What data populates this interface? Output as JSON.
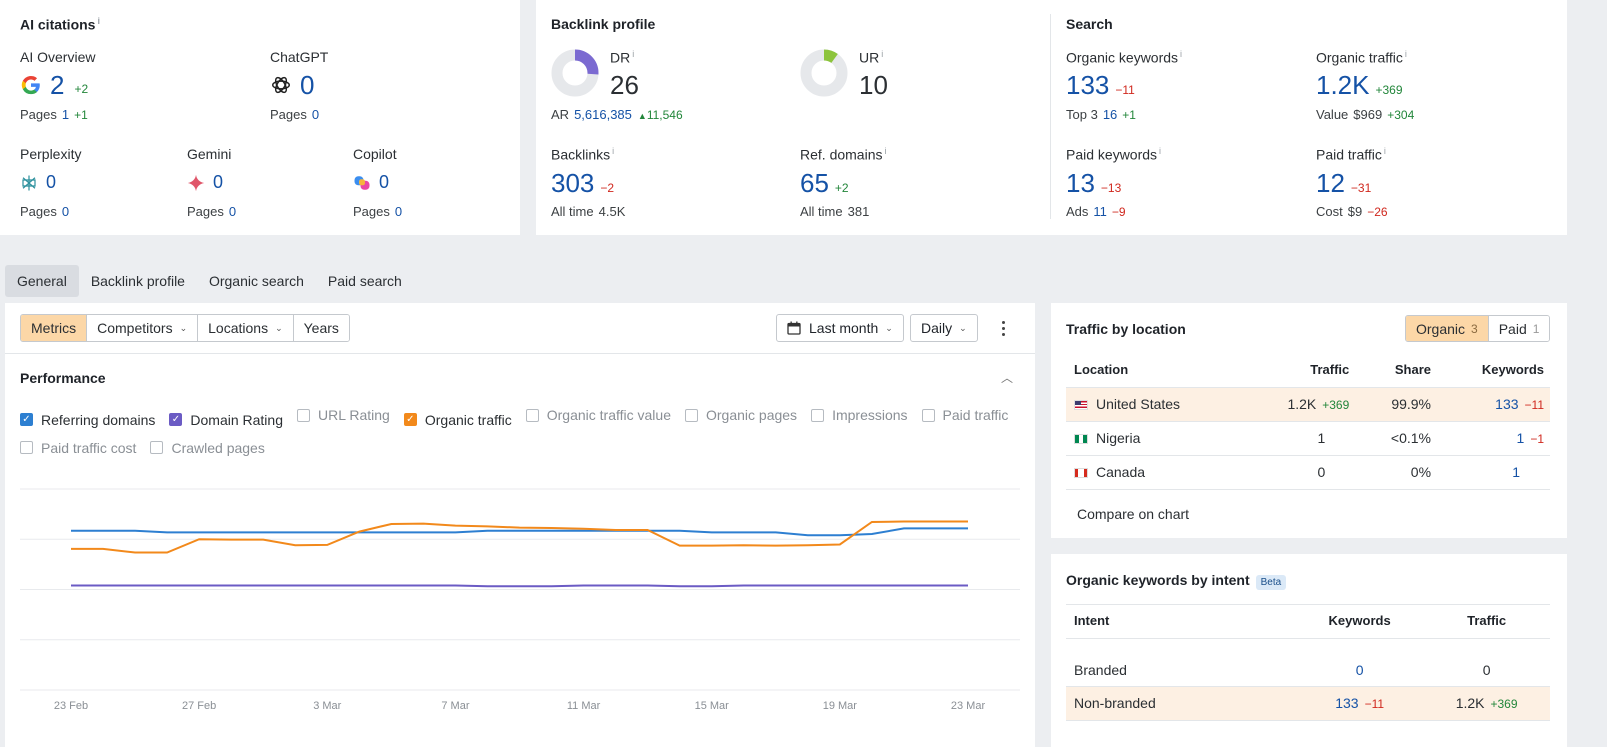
{
  "ai": {
    "title": "AI citations",
    "overview": {
      "label": "AI Overview",
      "value": "2",
      "delta": "+2",
      "pages_label": "Pages",
      "pages": "1",
      "pages_delta": "+1"
    },
    "chatgpt": {
      "label": "ChatGPT",
      "value": "0",
      "pages_label": "Pages",
      "pages": "0"
    },
    "perplexity": {
      "label": "Perplexity",
      "value": "0",
      "pages_label": "Pages",
      "pages": "0"
    },
    "gemini": {
      "label": "Gemini",
      "value": "0",
      "pages_label": "Pages",
      "pages": "0"
    },
    "copilot": {
      "label": "Copilot",
      "value": "0",
      "pages_label": "Pages",
      "pages": "0"
    }
  },
  "backlink": {
    "title": "Backlink profile",
    "dr": {
      "label": "DR",
      "value": "26",
      "fraction": 0.26
    },
    "ur": {
      "label": "UR",
      "value": "10",
      "fraction": 0.1
    },
    "ar": {
      "label": "AR",
      "value": "5,616,385",
      "delta": "11,546"
    },
    "backlinks": {
      "label": "Backlinks",
      "value": "303",
      "delta": "−2",
      "sub_label": "All time",
      "sub_value": "4.5K"
    },
    "refdomains": {
      "label": "Ref. domains",
      "value": "65",
      "delta": "+2",
      "sub_label": "All time",
      "sub_value": "381"
    }
  },
  "search": {
    "title": "Search",
    "org_kw": {
      "label": "Organic keywords",
      "value": "133",
      "delta": "−11",
      "sub_label": "Top 3",
      "sub_value": "16",
      "sub_delta": "+1"
    },
    "org_traffic": {
      "label": "Organic traffic",
      "value": "1.2K",
      "delta": "+369",
      "sub_label": "Value",
      "sub_value": "$969",
      "sub_delta": "+304"
    },
    "paid_kw": {
      "label": "Paid keywords",
      "value": "13",
      "delta": "−13",
      "sub_label": "Ads",
      "sub_value": "11",
      "sub_delta": "−9"
    },
    "paid_traffic": {
      "label": "Paid traffic",
      "value": "12",
      "delta": "−31",
      "sub_label": "Cost",
      "sub_value": "$9",
      "sub_delta": "−26"
    }
  },
  "tabs": [
    "General",
    "Backlink profile",
    "Organic search",
    "Paid search"
  ],
  "toolbar": {
    "segments": [
      "Metrics",
      "Competitors",
      "Locations",
      "Years"
    ],
    "period": "Last month",
    "granularity": "Daily"
  },
  "performance": {
    "title": "Performance",
    "checkboxes": [
      {
        "label": "Referring domains",
        "checked": true,
        "color": "#2d7fd1"
      },
      {
        "label": "Domain Rating",
        "checked": true,
        "color": "#6b5bc4"
      },
      {
        "label": "URL Rating",
        "checked": false
      },
      {
        "label": "Organic traffic",
        "checked": true,
        "color": "#f2891b"
      },
      {
        "label": "Organic traffic value",
        "checked": false
      },
      {
        "label": "Organic pages",
        "checked": false
      },
      {
        "label": "Impressions",
        "checked": false
      },
      {
        "label": "Paid traffic",
        "checked": false
      },
      {
        "label": "Paid traffic cost",
        "checked": false
      },
      {
        "label": "Crawled pages",
        "checked": false
      }
    ]
  },
  "chart_data": {
    "type": "line",
    "x": [
      "23 Feb",
      "24 Feb",
      "25 Feb",
      "26 Feb",
      "27 Feb",
      "28 Feb",
      "1 Mar",
      "2 Mar",
      "3 Mar",
      "4 Mar",
      "5 Mar",
      "6 Mar",
      "7 Mar",
      "8 Mar",
      "9 Mar",
      "10 Mar",
      "11 Mar",
      "12 Mar",
      "13 Mar",
      "14 Mar",
      "15 Mar",
      "16 Mar",
      "17 Mar",
      "18 Mar",
      "19 Mar",
      "20 Mar",
      "21 Mar",
      "22 Mar",
      "23 Mar"
    ],
    "xticks": [
      "23 Feb",
      "27 Feb",
      "3 Mar",
      "7 Mar",
      "11 Mar",
      "15 Mar",
      "19 Mar",
      "23 Mar"
    ],
    "ylim": [
      0,
      100
    ],
    "grid": true,
    "series": [
      {
        "name": "Referring domains",
        "color": "#2d7fd1",
        "values": [
          79.2,
          79.2,
          79.2,
          78.4,
          78.4,
          78.4,
          78.4,
          78.4,
          78.4,
          78.4,
          78.4,
          78.4,
          78.4,
          79.2,
          79.2,
          79.2,
          79.2,
          79.2,
          79.2,
          79.2,
          78.4,
          78.4,
          78.4,
          77.0,
          77.0,
          77.6,
          80.4,
          80.4,
          80.4
        ]
      },
      {
        "name": "Organic traffic",
        "color": "#f2891b",
        "values": [
          70.2,
          70.2,
          68.4,
          68.4,
          75.0,
          74.8,
          74.8,
          72.0,
          72.2,
          78.8,
          82.6,
          82.8,
          81.8,
          81.4,
          80.8,
          80.6,
          80.2,
          79.6,
          79.6,
          71.8,
          71.8,
          72.0,
          71.8,
          72.0,
          72.4,
          83.6,
          83.8,
          83.8,
          83.8
        ]
      },
      {
        "name": "Domain Rating",
        "color": "#6b5bc4",
        "values": [
          52.0,
          52.0,
          52.0,
          52.0,
          52.0,
          52.0,
          52.0,
          52.0,
          52.0,
          52.0,
          52.0,
          52.0,
          52.0,
          51.6,
          51.6,
          51.6,
          52.0,
          52.0,
          52.0,
          51.6,
          51.6,
          52.0,
          52.0,
          52.0,
          52.0,
          52.0,
          52.0,
          52.0,
          52.0
        ]
      }
    ]
  },
  "location": {
    "title": "Traffic by location",
    "toggle": [
      {
        "label": "Organic",
        "count": "3"
      },
      {
        "label": "Paid",
        "count": "1"
      }
    ],
    "headers": [
      "Location",
      "Traffic",
      "Share",
      "Keywords"
    ],
    "rows": [
      {
        "name": "United States",
        "traffic": "1.2K",
        "traffic_delta": "+369",
        "share": "99.9%",
        "keywords": "133",
        "kw_delta": "−11"
      },
      {
        "name": "Nigeria",
        "traffic": "1",
        "traffic_delta": "",
        "share": "<0.1%",
        "keywords": "1",
        "kw_delta": "−1"
      },
      {
        "name": "Canada",
        "traffic": "0",
        "traffic_delta": "",
        "share": "0%",
        "keywords": "1",
        "kw_delta": ""
      }
    ],
    "compare": "Compare on chart"
  },
  "intent": {
    "title": "Organic keywords by intent",
    "badge": "Beta",
    "headers": [
      "Intent",
      "Keywords",
      "Traffic"
    ],
    "rows": [
      {
        "name": "Branded",
        "keywords": "0",
        "kw_delta": "",
        "traffic": "0",
        "traffic_delta": ""
      },
      {
        "name": "Non-branded",
        "keywords": "133",
        "kw_delta": "−11",
        "traffic": "1.2K",
        "traffic_delta": "+369"
      }
    ]
  }
}
